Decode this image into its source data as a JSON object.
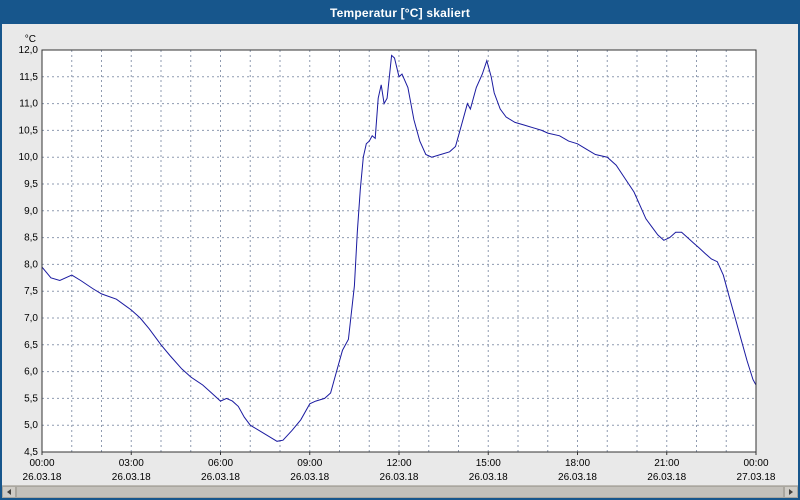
{
  "window": {
    "title": "Temperatur [°C] skaliert",
    "titlebar_color": "#17568C"
  },
  "chart_data": {
    "type": "line",
    "title": "Temperatur [°C] skaliert",
    "y_unit_label": "°C",
    "ylim": [
      4.5,
      12.0
    ],
    "y_tick_step": 0.5,
    "y_tick_labels": [
      "12,0",
      "11,5",
      "11,0",
      "10,5",
      "10,0",
      "9,5",
      "9,0",
      "8,5",
      "8,0",
      "7,5",
      "7,0",
      "6,5",
      "6,0",
      "5,5",
      "5,0",
      "4,5"
    ],
    "xlim": [
      0,
      24
    ],
    "x_grid_step_hours": 1,
    "x_tick_hours": [
      0,
      3,
      6,
      9,
      12,
      15,
      18,
      21,
      24
    ],
    "x_tick_times": [
      "00:00",
      "03:00",
      "06:00",
      "09:00",
      "12:00",
      "15:00",
      "18:00",
      "21:00",
      "00:00"
    ],
    "x_tick_dates": [
      "26.03.18",
      "26.03.18",
      "26.03.18",
      "26.03.18",
      "26.03.18",
      "26.03.18",
      "26.03.18",
      "26.03.18",
      "27.03.18"
    ],
    "grid": true,
    "legend": "none",
    "line_color": "#1a1aa0",
    "plot_background": "#ffffff",
    "outer_background": "#e9e9e9",
    "points": [
      [
        0.0,
        7.95
      ],
      [
        0.3,
        7.75
      ],
      [
        0.6,
        7.7
      ],
      [
        1.0,
        7.8
      ],
      [
        1.3,
        7.7
      ],
      [
        1.7,
        7.55
      ],
      [
        2.0,
        7.45
      ],
      [
        2.5,
        7.35
      ],
      [
        3.0,
        7.15
      ],
      [
        3.3,
        7.0
      ],
      [
        3.6,
        6.8
      ],
      [
        4.0,
        6.5
      ],
      [
        4.3,
        6.3
      ],
      [
        4.7,
        6.05
      ],
      [
        5.0,
        5.9
      ],
      [
        5.4,
        5.75
      ],
      [
        5.7,
        5.6
      ],
      [
        6.0,
        5.45
      ],
      [
        6.2,
        5.5
      ],
      [
        6.4,
        5.45
      ],
      [
        6.6,
        5.35
      ],
      [
        6.8,
        5.15
      ],
      [
        7.0,
        5.0
      ],
      [
        7.3,
        4.9
      ],
      [
        7.6,
        4.8
      ],
      [
        7.9,
        4.7
      ],
      [
        8.1,
        4.72
      ],
      [
        8.4,
        4.9
      ],
      [
        8.7,
        5.1
      ],
      [
        9.0,
        5.4
      ],
      [
        9.2,
        5.45
      ],
      [
        9.5,
        5.5
      ],
      [
        9.7,
        5.6
      ],
      [
        9.9,
        6.0
      ],
      [
        10.1,
        6.4
      ],
      [
        10.3,
        6.6
      ],
      [
        10.5,
        7.6
      ],
      [
        10.6,
        8.6
      ],
      [
        10.7,
        9.4
      ],
      [
        10.8,
        10.0
      ],
      [
        10.9,
        10.25
      ],
      [
        11.0,
        10.3
      ],
      [
        11.1,
        10.4
      ],
      [
        11.2,
        10.35
      ],
      [
        11.3,
        11.1
      ],
      [
        11.4,
        11.35
      ],
      [
        11.5,
        11.0
      ],
      [
        11.6,
        11.1
      ],
      [
        11.75,
        11.9
      ],
      [
        11.85,
        11.85
      ],
      [
        12.0,
        11.5
      ],
      [
        12.1,
        11.55
      ],
      [
        12.3,
        11.3
      ],
      [
        12.5,
        10.7
      ],
      [
        12.7,
        10.3
      ],
      [
        12.9,
        10.05
      ],
      [
        13.1,
        10.0
      ],
      [
        13.4,
        10.05
      ],
      [
        13.7,
        10.1
      ],
      [
        13.9,
        10.2
      ],
      [
        14.1,
        10.6
      ],
      [
        14.3,
        11.0
      ],
      [
        14.4,
        10.9
      ],
      [
        14.6,
        11.3
      ],
      [
        14.8,
        11.55
      ],
      [
        14.95,
        11.8
      ],
      [
        15.1,
        11.5
      ],
      [
        15.2,
        11.2
      ],
      [
        15.4,
        10.9
      ],
      [
        15.6,
        10.75
      ],
      [
        15.9,
        10.65
      ],
      [
        16.2,
        10.6
      ],
      [
        16.5,
        10.55
      ],
      [
        16.8,
        10.5
      ],
      [
        17.0,
        10.45
      ],
      [
        17.4,
        10.4
      ],
      [
        17.7,
        10.3
      ],
      [
        18.0,
        10.25
      ],
      [
        18.3,
        10.15
      ],
      [
        18.6,
        10.05
      ],
      [
        19.0,
        10.0
      ],
      [
        19.3,
        9.85
      ],
      [
        19.6,
        9.6
      ],
      [
        19.9,
        9.35
      ],
      [
        20.1,
        9.1
      ],
      [
        20.3,
        8.85
      ],
      [
        20.5,
        8.7
      ],
      [
        20.7,
        8.55
      ],
      [
        20.9,
        8.45
      ],
      [
        21.1,
        8.5
      ],
      [
        21.3,
        8.6
      ],
      [
        21.5,
        8.6
      ],
      [
        21.7,
        8.5
      ],
      [
        21.9,
        8.4
      ],
      [
        22.1,
        8.3
      ],
      [
        22.3,
        8.2
      ],
      [
        22.5,
        8.1
      ],
      [
        22.7,
        8.05
      ],
      [
        22.9,
        7.8
      ],
      [
        23.1,
        7.4
      ],
      [
        23.3,
        7.0
      ],
      [
        23.5,
        6.6
      ],
      [
        23.7,
        6.2
      ],
      [
        23.9,
        5.85
      ],
      [
        24.0,
        5.75
      ]
    ]
  }
}
